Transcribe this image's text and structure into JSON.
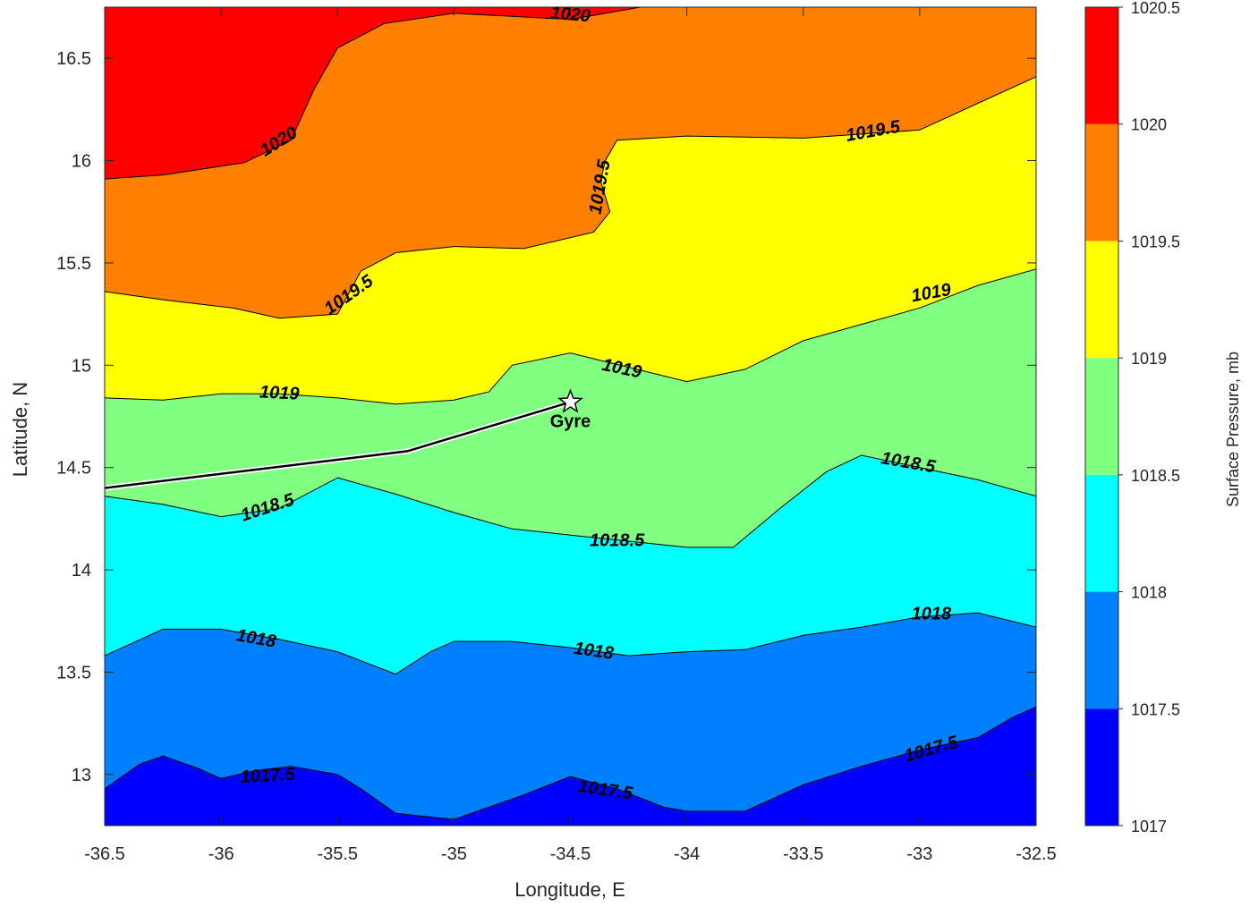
{
  "chart_data": {
    "type": "contourf",
    "title": "",
    "xlabel": "Longitude, E",
    "ylabel": "Latitude, N",
    "colorbar_label": "Surface Pressure, mb",
    "xlim": [
      -36.5,
      -32.5
    ],
    "ylim": [
      12.75,
      16.75
    ],
    "xticks": [
      "-36.5",
      "-36",
      "-35.5",
      "-35",
      "-34.5",
      "-34",
      "-33.5",
      "-33",
      "-32.5"
    ],
    "yticks": [
      "13",
      "13.5",
      "14",
      "14.5",
      "15",
      "15.5",
      "16",
      "16.5"
    ],
    "colorbar": {
      "levels": [
        1017,
        1017.5,
        1018,
        1018.5,
        1019,
        1019.5,
        1020,
        1020.5
      ],
      "ticks": [
        "1017",
        "1017.5",
        "1018",
        "1018.5",
        "1019",
        "1019.5",
        "1020",
        "1020.5"
      ],
      "colors": [
        "#0000ff",
        "#0080ff",
        "#00ffff",
        "#80ff80",
        "#ffff00",
        "#ff8000",
        "#ff0000",
        "#800000"
      ]
    },
    "contours": [
      {
        "level": 1017.5,
        "label": "1017.5",
        "points": [
          [
            -36.5,
            12.93
          ],
          [
            -36.35,
            13.05
          ],
          [
            -36.25,
            13.09
          ],
          [
            -36.1,
            13.03
          ],
          [
            -36,
            12.98
          ],
          [
            -35.85,
            13.02
          ],
          [
            -35.7,
            13.04
          ],
          [
            -35.5,
            13.0
          ],
          [
            -35.4,
            12.93
          ],
          [
            -35.25,
            12.81
          ],
          [
            -35,
            12.78
          ],
          [
            -34.85,
            12.84
          ],
          [
            -34.7,
            12.9
          ],
          [
            -34.5,
            12.99
          ],
          [
            -34.3,
            12.93
          ],
          [
            -34.1,
            12.84
          ],
          [
            -34,
            12.82
          ],
          [
            -33.75,
            12.82
          ],
          [
            -33.5,
            12.95
          ],
          [
            -33.25,
            13.04
          ],
          [
            -33,
            13.12
          ],
          [
            -32.75,
            13.18
          ],
          [
            -32.6,
            13.28
          ],
          [
            -32.5,
            13.33
          ]
        ],
        "labels": [
          {
            "x": -35.8,
            "y": 12.99,
            "rot": -3
          },
          {
            "x": -34.35,
            "y": 12.92,
            "rot": 8
          },
          {
            "x": -32.95,
            "y": 13.12,
            "rot": -16
          }
        ]
      },
      {
        "level": 1018,
        "label": "1018",
        "points": [
          [
            -36.5,
            13.58
          ],
          [
            -36.25,
            13.71
          ],
          [
            -36,
            13.71
          ],
          [
            -35.75,
            13.66
          ],
          [
            -35.5,
            13.6
          ],
          [
            -35.25,
            13.49
          ],
          [
            -35.1,
            13.6
          ],
          [
            -35,
            13.65
          ],
          [
            -34.75,
            13.65
          ],
          [
            -34.5,
            13.62
          ],
          [
            -34.25,
            13.58
          ],
          [
            -34,
            13.6
          ],
          [
            -33.75,
            13.61
          ],
          [
            -33.5,
            13.68
          ],
          [
            -33.25,
            13.72
          ],
          [
            -33,
            13.77
          ],
          [
            -32.75,
            13.79
          ],
          [
            -32.5,
            13.72
          ]
        ],
        "labels": [
          {
            "x": -35.85,
            "y": 13.66,
            "rot": 10
          },
          {
            "x": -34.4,
            "y": 13.6,
            "rot": 8
          },
          {
            "x": -32.95,
            "y": 13.78,
            "rot": 0
          }
        ]
      },
      {
        "level": 1018.5,
        "label": "1018.5",
        "points": [
          [
            -36.5,
            14.36
          ],
          [
            -36.25,
            14.32
          ],
          [
            -36,
            14.26
          ],
          [
            -35.75,
            14.3
          ],
          [
            -35.5,
            14.45
          ],
          [
            -35.25,
            14.37
          ],
          [
            -35,
            14.28
          ],
          [
            -34.75,
            14.2
          ],
          [
            -34.5,
            14.17
          ],
          [
            -34.25,
            14.14
          ],
          [
            -34,
            14.11
          ],
          [
            -33.8,
            14.11
          ],
          [
            -33.6,
            14.3
          ],
          [
            -33.4,
            14.48
          ],
          [
            -33.25,
            14.56
          ],
          [
            -33,
            14.5
          ],
          [
            -32.75,
            14.44
          ],
          [
            -32.5,
            14.36
          ]
        ],
        "labels": [
          {
            "x": -35.8,
            "y": 14.3,
            "rot": -18
          },
          {
            "x": -34.3,
            "y": 14.14,
            "rot": 0
          },
          {
            "x": -33.05,
            "y": 14.52,
            "rot": 10
          }
        ]
      },
      {
        "level": 1019,
        "label": "1019",
        "points": [
          [
            -36.5,
            14.84
          ],
          [
            -36.25,
            14.83
          ],
          [
            -36,
            14.86
          ],
          [
            -35.75,
            14.86
          ],
          [
            -35.5,
            14.84
          ],
          [
            -35.25,
            14.81
          ],
          [
            -35,
            14.83
          ],
          [
            -34.85,
            14.87
          ],
          [
            -34.75,
            15.0
          ],
          [
            -34.5,
            15.06
          ],
          [
            -34.25,
            14.99
          ],
          [
            -34,
            14.92
          ],
          [
            -33.75,
            14.98
          ],
          [
            -33.5,
            15.12
          ],
          [
            -33.25,
            15.2
          ],
          [
            -33,
            15.28
          ],
          [
            -32.75,
            15.39
          ],
          [
            -32.5,
            15.47
          ]
        ],
        "labels": [
          {
            "x": -35.75,
            "y": 14.86,
            "rot": 3
          },
          {
            "x": -34.28,
            "y": 14.98,
            "rot": 12
          },
          {
            "x": -32.95,
            "y": 15.35,
            "rot": -10
          }
        ]
      },
      {
        "level": 1019.5,
        "label": "1019.5",
        "points": [
          [
            -36.5,
            15.36
          ],
          [
            -36.25,
            15.32
          ],
          [
            -35.95,
            15.28
          ],
          [
            -35.75,
            15.23
          ],
          [
            -35.5,
            15.25
          ],
          [
            -35.4,
            15.46
          ],
          [
            -35.25,
            15.55
          ],
          [
            -35,
            15.58
          ],
          [
            -34.7,
            15.57
          ],
          [
            -34.4,
            15.65
          ],
          [
            -34.33,
            15.75
          ],
          [
            -34.37,
            15.9
          ],
          [
            -34.35,
            16.0
          ],
          [
            -34.3,
            16.1
          ],
          [
            -34,
            16.12
          ],
          [
            -33.5,
            16.11
          ],
          [
            -33,
            16.15
          ],
          [
            -32.75,
            16.28
          ],
          [
            -32.5,
            16.41
          ]
        ],
        "labels": [
          {
            "x": -35.45,
            "y": 15.34,
            "rot": -35
          },
          {
            "x": -34.37,
            "y": 15.87,
            "rot": -80
          },
          {
            "x": -33.2,
            "y": 16.14,
            "rot": -10
          }
        ]
      },
      {
        "level": 1020,
        "label": "1020",
        "points": [
          [
            -36.5,
            15.91
          ],
          [
            -36.25,
            15.93
          ],
          [
            -35.9,
            15.99
          ],
          [
            -35.7,
            16.1
          ],
          [
            -35.6,
            16.35
          ],
          [
            -35.5,
            16.55
          ],
          [
            -35.3,
            16.67
          ],
          [
            -35,
            16.72
          ],
          [
            -34.5,
            16.69
          ],
          [
            -34.2,
            16.75
          ]
        ],
        "labels": [
          {
            "x": -35.75,
            "y": 16.09,
            "rot": -32
          },
          {
            "x": -34.5,
            "y": 16.71,
            "rot": 5
          }
        ]
      }
    ],
    "track": {
      "points": [
        [
          -36.5,
          14.4
        ],
        [
          -35.2,
          14.58
        ],
        [
          -34.5,
          14.82
        ]
      ],
      "marker": {
        "x": -34.5,
        "y": 14.82,
        "shape": "star",
        "label": "Gyre"
      }
    }
  }
}
